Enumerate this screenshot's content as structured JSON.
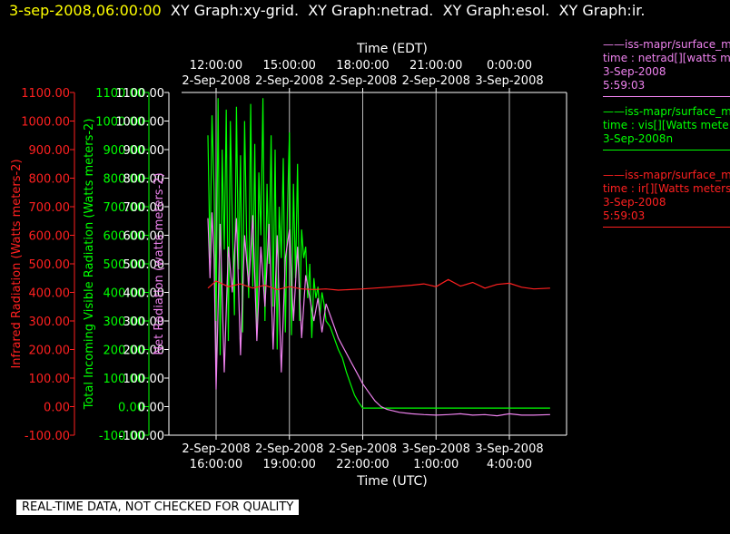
{
  "header": {
    "timestamp": "3-sep-2008,06:00:00",
    "graphs": [
      "XY Graph:xy-grid.",
      "XY Graph:netrad.",
      "XY Graph:esol.",
      "XY Graph:ir."
    ]
  },
  "footer": "REAL-TIME DATA, NOT CHECKED FOR QUALITY",
  "legends": [
    {
      "color": "#ee82ee",
      "lines": [
        "——iss-mapr/surface_m",
        "time : netrad[][watts m",
        "3-Sep-2008",
        "5:59:03"
      ]
    },
    {
      "color": "#00ff00",
      "lines": [
        "——iss-mapr/surface_m",
        "time : vis[][Watts mete",
        "3-Sep-2008n"
      ]
    },
    {
      "color": "#ff2020",
      "lines": [
        "——iss-mapr/surface_m",
        "time : ir[][Watts meters",
        "3-Sep-2008",
        "5:59:03"
      ]
    }
  ],
  "chart_data": {
    "type": "line",
    "x_axis_bottom": {
      "label": "Time (UTC)",
      "ticks": [
        {
          "t": 0,
          "line1": "2-Sep-2008",
          "line2": "16:00:00"
        },
        {
          "t": 3,
          "line1": "2-Sep-2008",
          "line2": "19:00:00"
        },
        {
          "t": 6,
          "line1": "2-Sep-2008",
          "line2": "22:00:00"
        },
        {
          "t": 9,
          "line1": "3-Sep-2008",
          "line2": "1:00:00"
        },
        {
          "t": 12,
          "line1": "3-Sep-2008",
          "line2": "4:00:00"
        }
      ],
      "range": [
        "2-Sep-2008 16:00 UTC",
        "3-Sep-2008 06:00 UTC"
      ]
    },
    "x_axis_top": {
      "label": "Time (EDT)",
      "ticks": [
        {
          "t": 0,
          "line1": "12:00:00",
          "line2": "2-Sep-2008"
        },
        {
          "t": 3,
          "line1": "15:00:00",
          "line2": "2-Sep-2008"
        },
        {
          "t": 6,
          "line1": "18:00:00",
          "line2": "2-Sep-2008"
        },
        {
          "t": 9,
          "line1": "21:00:00",
          "line2": "2-Sep-2008"
        },
        {
          "t": 12,
          "line1": "0:00:00",
          "line2": "3-Sep-2008"
        }
      ]
    },
    "y_axes": [
      {
        "label": "Infrared Radiation (Watts meters-2)",
        "color": "#ff2020",
        "ylim": [
          -100,
          1100
        ]
      },
      {
        "label": "Total Incoming Visible Radiation (Watts meters-2)",
        "color": "#00ff00",
        "ylim": [
          -100,
          1100
        ]
      },
      {
        "label": "Net Radiation (watts meters-2)",
        "color": "#ee82ee",
        "ylim": [
          -100,
          1100
        ]
      }
    ],
    "y_ticks": [
      "1100.00",
      "1000.00",
      "900.00",
      "800.00",
      "700.00",
      "600.00",
      "500.00",
      "400.00",
      "300.00",
      "200.00",
      "100.00",
      "0.00",
      "-100.00"
    ],
    "grid": "vertical at x ticks",
    "series": [
      {
        "name": "vis",
        "color": "#00ff00",
        "x": [
          "2-Sep-2008 15:40",
          "2-Sep-2008 15:45",
          "2-Sep-2008 15:50",
          "2-Sep-2008 15:55",
          "2-Sep-2008 16:00",
          "2-Sep-2008 16:05",
          "2-Sep-2008 16:10",
          "2-Sep-2008 16:15",
          "2-Sep-2008 16:20",
          "2-Sep-2008 16:25",
          "2-Sep-2008 16:30",
          "2-Sep-2008 16:35",
          "2-Sep-2008 16:40",
          "2-Sep-2008 16:45",
          "2-Sep-2008 16:50",
          "2-Sep-2008 16:55",
          "2-Sep-2008 17:00",
          "2-Sep-2008 17:05",
          "2-Sep-2008 17:10",
          "2-Sep-2008 17:15",
          "2-Sep-2008 17:20",
          "2-Sep-2008 17:25",
          "2-Sep-2008 17:30",
          "2-Sep-2008 17:35",
          "2-Sep-2008 17:40",
          "2-Sep-2008 17:45",
          "2-Sep-2008 17:50",
          "2-Sep-2008 17:55",
          "2-Sep-2008 18:00",
          "2-Sep-2008 18:05",
          "2-Sep-2008 18:10",
          "2-Sep-2008 18:15",
          "2-Sep-2008 18:20",
          "2-Sep-2008 18:25",
          "2-Sep-2008 18:30",
          "2-Sep-2008 18:35",
          "2-Sep-2008 18:40",
          "2-Sep-2008 18:45",
          "2-Sep-2008 18:50",
          "2-Sep-2008 18:55",
          "2-Sep-2008 19:00",
          "2-Sep-2008 19:05",
          "2-Sep-2008 19:10",
          "2-Sep-2008 19:15",
          "2-Sep-2008 19:20",
          "2-Sep-2008 19:25",
          "2-Sep-2008 19:30",
          "2-Sep-2008 19:35",
          "2-Sep-2008 19:40",
          "2-Sep-2008 19:45",
          "2-Sep-2008 19:50",
          "2-Sep-2008 19:55",
          "2-Sep-2008 20:00",
          "2-Sep-2008 20:05",
          "2-Sep-2008 20:10",
          "2-Sep-2008 20:15",
          "2-Sep-2008 20:20",
          "2-Sep-2008 20:25",
          "2-Sep-2008 20:30",
          "2-Sep-2008 20:40",
          "2-Sep-2008 20:50",
          "2-Sep-2008 21:00",
          "2-Sep-2008 21:10",
          "2-Sep-2008 21:20",
          "2-Sep-2008 21:30",
          "2-Sep-2008 21:40",
          "2-Sep-2008 21:50",
          "2-Sep-2008 22:00",
          "2-Sep-2008 22:10",
          "2-Sep-2008 22:20",
          "2-Sep-2008 22:30",
          "2-Sep-2008 22:40",
          "2-Sep-2008 22:50",
          "2-Sep-2008 23:00",
          "2-Sep-2008 23:30",
          "3-Sep-2008 00:00",
          "3-Sep-2008 01:00",
          "3-Sep-2008 02:00",
          "3-Sep-2008 03:00",
          "3-Sep-2008 04:00",
          "3-Sep-2008 05:00",
          "3-Sep-2008 05:40"
        ],
        "y": [
          950,
          520,
          1020,
          760,
          300,
          1080,
          180,
          900,
          550,
          1040,
          230,
          1000,
          650,
          320,
          1050,
          480,
          880,
          260,
          1000,
          600,
          380,
          1060,
          420,
          920,
          250,
          820,
          600,
          1080,
          300,
          780,
          500,
          950,
          350,
          900,
          200,
          700,
          520,
          870,
          260,
          680,
          960,
          250,
          780,
          450,
          850,
          300,
          620,
          520,
          560,
          380,
          500,
          240,
          450,
          380,
          420,
          320,
          400,
          360,
          300,
          280,
          240,
          200,
          170,
          120,
          80,
          40,
          15,
          -5,
          -5,
          -5,
          -5,
          -5,
          -5,
          -5,
          -5,
          -5,
          -5,
          -5,
          -5,
          -5,
          -5,
          -5
        ]
      },
      {
        "name": "netrad",
        "color": "#ee82ee",
        "x": [
          "2-Sep-2008 15:40",
          "2-Sep-2008 15:45",
          "2-Sep-2008 15:50",
          "2-Sep-2008 15:55",
          "2-Sep-2008 16:00",
          "2-Sep-2008 16:10",
          "2-Sep-2008 16:20",
          "2-Sep-2008 16:30",
          "2-Sep-2008 16:40",
          "2-Sep-2008 16:50",
          "2-Sep-2008 17:00",
          "2-Sep-2008 17:10",
          "2-Sep-2008 17:20",
          "2-Sep-2008 17:30",
          "2-Sep-2008 17:40",
          "2-Sep-2008 17:50",
          "2-Sep-2008 18:00",
          "2-Sep-2008 18:10",
          "2-Sep-2008 18:20",
          "2-Sep-2008 18:30",
          "2-Sep-2008 18:40",
          "2-Sep-2008 18:50",
          "2-Sep-2008 19:00",
          "2-Sep-2008 19:10",
          "2-Sep-2008 19:20",
          "2-Sep-2008 19:30",
          "2-Sep-2008 19:40",
          "2-Sep-2008 19:50",
          "2-Sep-2008 20:00",
          "2-Sep-2008 20:10",
          "2-Sep-2008 20:20",
          "2-Sep-2008 20:30",
          "2-Sep-2008 20:45",
          "2-Sep-2008 21:00",
          "2-Sep-2008 21:15",
          "2-Sep-2008 21:30",
          "2-Sep-2008 21:45",
          "2-Sep-2008 22:00",
          "2-Sep-2008 22:15",
          "2-Sep-2008 22:30",
          "2-Sep-2008 22:45",
          "2-Sep-2008 23:00",
          "2-Sep-2008 23:30",
          "3-Sep-2008 00:00",
          "3-Sep-2008 00:30",
          "3-Sep-2008 01:00",
          "3-Sep-2008 01:30",
          "3-Sep-2008 02:00",
          "3-Sep-2008 02:30",
          "3-Sep-2008 03:00",
          "3-Sep-2008 03:30",
          "3-Sep-2008 04:00",
          "3-Sep-2008 04:30",
          "3-Sep-2008 05:00",
          "3-Sep-2008 05:40"
        ],
        "y": [
          660,
          450,
          680,
          520,
          60,
          640,
          120,
          560,
          400,
          660,
          180,
          600,
          420,
          670,
          230,
          560,
          350,
          640,
          200,
          600,
          120,
          520,
          620,
          300,
          560,
          240,
          460,
          380,
          300,
          380,
          260,
          360,
          300,
          240,
          200,
          160,
          120,
          80,
          50,
          20,
          0,
          -10,
          -20,
          -25,
          -28,
          -30,
          -28,
          -25,
          -30,
          -28,
          -32,
          -25,
          -30,
          -30,
          -28
        ]
      },
      {
        "name": "ir",
        "color": "#ff2020",
        "x": [
          "2-Sep-2008 15:40",
          "2-Sep-2008 16:00",
          "2-Sep-2008 16:30",
          "2-Sep-2008 17:00",
          "2-Sep-2008 17:30",
          "2-Sep-2008 18:00",
          "2-Sep-2008 18:30",
          "2-Sep-2008 19:00",
          "2-Sep-2008 19:30",
          "2-Sep-2008 20:00",
          "2-Sep-2008 20:30",
          "2-Sep-2008 21:00",
          "2-Sep-2008 22:00",
          "2-Sep-2008 23:00",
          "3-Sep-2008 00:00",
          "3-Sep-2008 00:30",
          "3-Sep-2008 01:00",
          "3-Sep-2008 01:30",
          "3-Sep-2008 02:00",
          "3-Sep-2008 02:30",
          "3-Sep-2008 03:00",
          "3-Sep-2008 03:30",
          "3-Sep-2008 04:00",
          "3-Sep-2008 04:30",
          "3-Sep-2008 05:00",
          "3-Sep-2008 05:40"
        ],
        "y": [
          415,
          440,
          420,
          430,
          415,
          425,
          410,
          420,
          412,
          410,
          412,
          408,
          412,
          418,
          425,
          430,
          420,
          445,
          422,
          435,
          415,
          428,
          432,
          418,
          412,
          415
        ]
      }
    ]
  }
}
